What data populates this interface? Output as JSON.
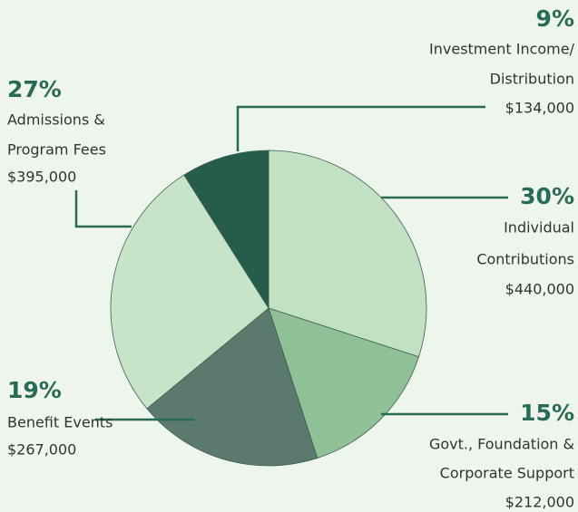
{
  "chart_data": {
    "type": "pie",
    "categories": [
      [
        "Individual",
        "Contributions"
      ],
      [
        "Govt., Foundation &",
        "Corporate Support"
      ],
      [
        "Benefit Events"
      ],
      [
        "Admissions &",
        "Program Fees"
      ],
      [
        "Investment Income/",
        "Distribution"
      ]
    ],
    "values": [
      30,
      15,
      19,
      27,
      9
    ],
    "value_labels": [
      "30%",
      "15%",
      "19%",
      "27%",
      "9%"
    ],
    "amounts": [
      "$440,000",
      "$212,000",
      "$267,000",
      "$395,000",
      "$134,000"
    ],
    "colors": [
      "#c2e0c2",
      "#8fc096",
      "#5b7a6d",
      "#c8e4c8",
      "#255c4c"
    ]
  }
}
